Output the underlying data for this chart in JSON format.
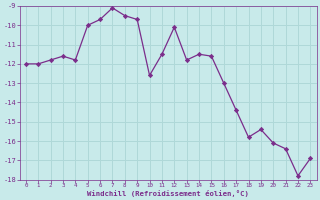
{
  "x": [
    0,
    1,
    2,
    3,
    4,
    5,
    6,
    7,
    8,
    9,
    10,
    11,
    12,
    13,
    14,
    15,
    16,
    17,
    18,
    19,
    20,
    21,
    22,
    23
  ],
  "y": [
    -12.0,
    -12.0,
    -11.8,
    -11.6,
    -11.8,
    -10.0,
    -9.7,
    -9.1,
    -9.5,
    -9.7,
    -12.6,
    -11.5,
    -10.1,
    -11.8,
    -11.5,
    -11.6,
    -13.0,
    -14.4,
    -15.8,
    -15.4,
    -16.1,
    -16.4,
    -17.8,
    -16.9
  ],
  "line_color": "#7b2d8b",
  "marker": "D",
  "marker_size": 2.2,
  "bg_color": "#c8eaea",
  "grid_color": "#afd8d8",
  "xlabel": "Windchill (Refroidissement éolien,°C)",
  "xlabel_color": "#7b2d8b",
  "tick_color": "#7b2d8b",
  "ylim": [
    -18,
    -9
  ],
  "xlim": [
    -0.5,
    23.5
  ],
  "yticks": [
    -18,
    -17,
    -16,
    -15,
    -14,
    -13,
    -12,
    -11,
    -10,
    -9
  ],
  "xticks": [
    0,
    1,
    2,
    3,
    4,
    5,
    6,
    7,
    8,
    9,
    10,
    11,
    12,
    13,
    14,
    15,
    16,
    17,
    18,
    19,
    20,
    21,
    22,
    23
  ]
}
